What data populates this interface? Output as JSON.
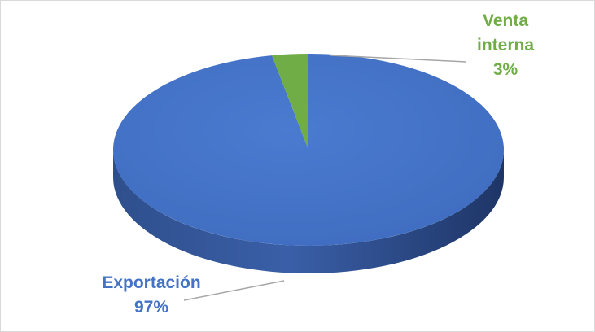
{
  "chart_data": {
    "type": "pie",
    "title": "",
    "categories": [
      "Exportación",
      "Venta interna"
    ],
    "values": [
      97,
      3
    ],
    "value_labels": [
      "97%",
      "3%"
    ],
    "label_lines": {
      "venta_interna": [
        "Venta",
        "interna",
        "3%"
      ],
      "exportacion": [
        "Exportación",
        "97%"
      ]
    },
    "colors": {
      "Exportación": "#4472c4",
      "Venta interna": "#70ad47"
    },
    "style": "3d",
    "legend": "none"
  }
}
